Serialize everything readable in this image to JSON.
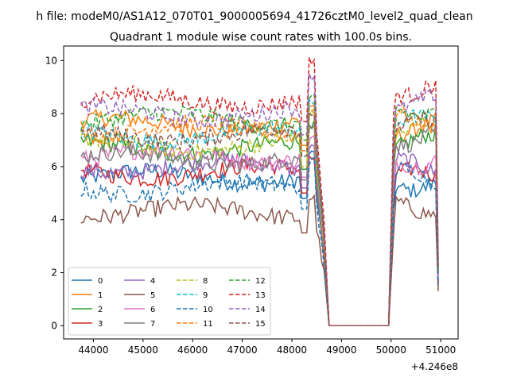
{
  "suptitle": "h file: modeM0/AS1A12_070T01_9000005694_41726cztM0_level2_quad_clean",
  "chart_data": {
    "type": "line",
    "title": "Quadrant 1 module wise count rates with 100.0s bins.",
    "xlabel": "",
    "ylabel": "",
    "x_offset_label": "+4.246e8",
    "xlim": [
      43400,
      51350
    ],
    "ylim": [
      -0.5,
      10.55
    ],
    "x_ticks": [
      44000,
      45000,
      46000,
      47000,
      48000,
      49000,
      50000,
      51000
    ],
    "y_ticks": [
      0,
      2,
      4,
      6,
      8,
      10
    ],
    "grid": false,
    "legend_position": "lower-left",
    "series_colors": [
      "#1f77b4",
      "#ff7f0e",
      "#2ca02c",
      "#d62728",
      "#9467bd",
      "#8c564b",
      "#e377c2",
      "#7f7f7f",
      "#bcbd22",
      "#17becf",
      "#1f77b4",
      "#ff7f0e",
      "#2ca02c",
      "#d62728",
      "#9467bd",
      "#8c564b"
    ],
    "series": [
      {
        "name": "0",
        "linestyle": "solid",
        "level1": 5.6,
        "peak": 6.5,
        "level2": 5.4
      },
      {
        "name": "1",
        "linestyle": "solid",
        "level1": 7.6,
        "peak": 8.3,
        "level2": 7.5
      },
      {
        "name": "2",
        "linestyle": "solid",
        "level1": 6.7,
        "peak": 7.6,
        "level2": 6.9
      },
      {
        "name": "3",
        "linestyle": "solid",
        "level1": 5.8,
        "peak": 6.3,
        "level2": 5.6
      },
      {
        "name": "4",
        "linestyle": "solid",
        "level1": 6.0,
        "peak": 6.8,
        "level2": 6.0
      },
      {
        "name": "5",
        "linestyle": "solid",
        "level1": 4.3,
        "peak": 4.8,
        "level2": 4.5
      },
      {
        "name": "6",
        "linestyle": "solid",
        "level1": 6.4,
        "peak": 7.1,
        "level2": 6.3
      },
      {
        "name": "7",
        "linestyle": "solid",
        "level1": 6.3,
        "peak": 7.5,
        "level2": 7.1
      },
      {
        "name": "8",
        "linestyle": "dashed",
        "level1": 6.8,
        "peak": 8.0,
        "level2": 7.4
      },
      {
        "name": "9",
        "linestyle": "dashed",
        "level1": 7.2,
        "peak": 8.4,
        "level2": 7.6
      },
      {
        "name": "10",
        "linestyle": "dashed",
        "level1": 5.2,
        "peak": 6.2,
        "level2": 5.6
      },
      {
        "name": "11",
        "linestyle": "dashed",
        "level1": 7.4,
        "peak": 8.2,
        "level2": 7.8
      },
      {
        "name": "12",
        "linestyle": "dashed",
        "level1": 7.8,
        "peak": 8.6,
        "level2": 8.2
      },
      {
        "name": "13",
        "linestyle": "dashed",
        "level1": 8.5,
        "peak": 10.0,
        "level2": 9.0
      },
      {
        "name": "14",
        "linestyle": "dashed",
        "level1": 8.0,
        "peak": 9.4,
        "level2": 8.4
      },
      {
        "name": "15",
        "linestyle": "dashed",
        "level1": 7.2,
        "peak": 8.0,
        "level2": 7.5
      }
    ],
    "x_segment1": [
      43750,
      48650
    ],
    "x_zero": [
      48750,
      49950
    ],
    "x_segment2": [
      50050,
      50950
    ]
  }
}
